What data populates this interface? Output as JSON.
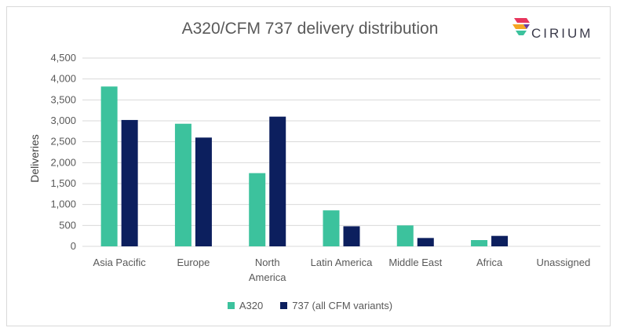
{
  "brand": {
    "logo_text": "CIRIUM"
  },
  "colors": {
    "A320": "#3cc29d",
    "737": "#0c1f5e",
    "grid": "#d9d9d9",
    "axis_text": "#595959"
  },
  "chart_data": {
    "type": "bar",
    "title": "A320/CFM 737 delivery distribution",
    "xlabel": "",
    "ylabel": "Deliveries",
    "ylim": [
      0,
      4500
    ],
    "yticks": [
      0,
      500,
      1000,
      1500,
      2000,
      2500,
      3000,
      3500,
      4000,
      4500
    ],
    "ytick_labels": [
      "0",
      "500",
      "1,000",
      "1,500",
      "2,000",
      "2,500",
      "3,000",
      "3,500",
      "4,000",
      "4,500"
    ],
    "categories": [
      "Asia Pacific",
      "Europe",
      "North America",
      "Latin America",
      "Middle East",
      "Africa",
      "Unassigned"
    ],
    "category_lines": [
      [
        "Asia Pacific"
      ],
      [
        "Europe"
      ],
      [
        "North",
        "America"
      ],
      [
        "Latin America"
      ],
      [
        "Middle East"
      ],
      [
        "Africa"
      ],
      [
        "Unassigned"
      ]
    ],
    "series": [
      {
        "name": "A320",
        "values": [
          3820,
          2930,
          1750,
          860,
          500,
          150,
          0
        ]
      },
      {
        "name": "737 (all CFM variants)",
        "values": [
          3020,
          2600,
          3100,
          480,
          200,
          250,
          0
        ]
      }
    ],
    "grid": true,
    "legend": "bottom"
  }
}
